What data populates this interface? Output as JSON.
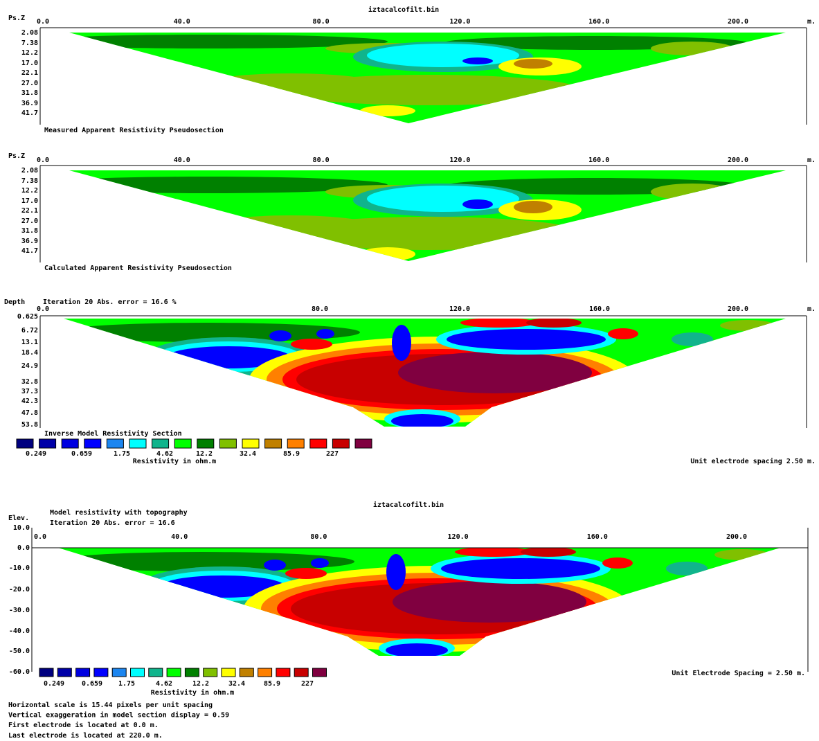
{
  "panels": [
    {
      "file": "iztacalcofilt.bin",
      "axis_label": "Ps.Z",
      "x_ticks": [
        "0.0",
        "40.0",
        "80.0",
        "120.0",
        "160.0",
        "200.0"
      ],
      "x_unit": "m.",
      "y_ticks": [
        "2.08",
        "7.38",
        "12.2",
        "17.0",
        "22.1",
        "27.0",
        "31.8",
        "36.9",
        "41.7"
      ],
      "caption": "Measured Apparent Resistivity Pseudosection"
    },
    {
      "axis_label": "Ps.Z",
      "x_ticks": [
        "0.0",
        "40.0",
        "80.0",
        "120.0",
        "160.0",
        "200.0"
      ],
      "x_unit": "m.",
      "y_ticks": [
        "2.08",
        "7.38",
        "12.2",
        "17.0",
        "22.1",
        "27.0",
        "31.8",
        "36.9",
        "41.7"
      ],
      "caption": "Calculated Apparent Resistivity Pseudosection"
    },
    {
      "axis_label": "Depth",
      "header": "Iteration 20 Abs. error = 16.6 %",
      "x_ticks": [
        "0.0",
        "80.0",
        "120.0",
        "160.0",
        "200.0"
      ],
      "x_unit": "m.",
      "y_ticks": [
        "0.625",
        "6.72",
        "13.1",
        "18.4",
        "24.9",
        "32.8",
        "37.3",
        "42.3",
        "47.8",
        "53.8"
      ],
      "caption": "Inverse Model Resistivity Section"
    },
    {
      "file": "iztacalcofilt.bin",
      "header_lines": [
        "Model resistivity with topography",
        "Iteration 20 Abs. error = 16.6"
      ],
      "axis_label": "Elev.",
      "x_ticks": [
        "0.0",
        "40.0",
        "80.0",
        "120.0",
        "160.0",
        "200.0"
      ],
      "y_ticks": [
        "10.0",
        "0.0",
        "-10.0",
        "-20.0",
        "-30.0",
        "-40.0",
        "-50.0",
        "-60.0"
      ]
    }
  ],
  "legends": [
    {
      "colors": [
        "#000080",
        "#0000a8",
        "#0000e0",
        "#0000ff",
        "#1c86f0",
        "#00ffff",
        "#10b48c",
        "#00ff00",
        "#008000",
        "#80c000",
        "#ffff00",
        "#c08000",
        "#ff8000",
        "#ff0000",
        "#c80000",
        "#800040",
        "#600060"
      ],
      "labels": [
        "0.249",
        "0.659",
        "1.75",
        "4.62",
        "12.2",
        "32.4",
        "85.9",
        "227"
      ],
      "unit": "Resistivity in ohm.m",
      "note": "Unit electrode spacing 2.50 m."
    },
    {
      "colors": [
        "#000080",
        "#0000a8",
        "#0000e0",
        "#0000ff",
        "#1c86f0",
        "#00ffff",
        "#10b48c",
        "#00ff00",
        "#008000",
        "#80c000",
        "#ffff00",
        "#c08000",
        "#ff8000",
        "#ff0000",
        "#c80000",
        "#800040",
        "#600060"
      ],
      "labels": [
        "0.249",
        "0.659",
        "1.75",
        "4.62",
        "12.2",
        "32.4",
        "85.9",
        "227"
      ],
      "unit": "Resistivity in ohm.m",
      "note": "Unit Electrode Spacing = 2.50 m."
    }
  ],
  "footer": [
    "Horizontal scale is 15.44 pixels per unit spacing",
    "Vertical exaggeration in model section display = 0.59",
    "First electrode is located at 0.0  m.",
    "Last electrode is located at 220.0 m."
  ]
}
